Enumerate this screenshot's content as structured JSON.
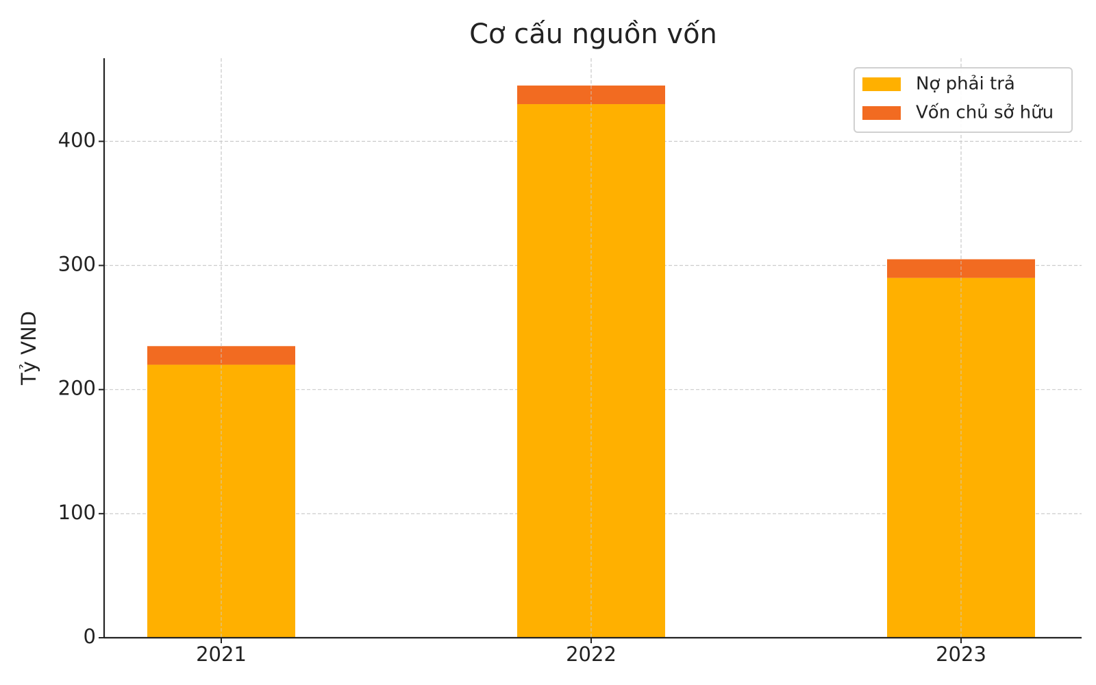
{
  "chart_data": {
    "type": "bar",
    "stacked": true,
    "title": "Cơ cấu nguồn vốn",
    "y_label": "Tỷ VND",
    "categories": [
      "2021",
      "2022",
      "2023"
    ],
    "series": [
      {
        "name": "Nợ phải trả",
        "color": "#ffb000",
        "values": [
          220,
          430,
          290
        ]
      },
      {
        "name": "Vốn chủ sở hữu",
        "color": "#f26b21",
        "values": [
          15,
          15,
          15
        ]
      }
    ],
    "ylim": [
      0,
      467
    ],
    "yticks": [
      0,
      100,
      200,
      300,
      400
    ],
    "grid": true,
    "legend": "upper right"
  }
}
